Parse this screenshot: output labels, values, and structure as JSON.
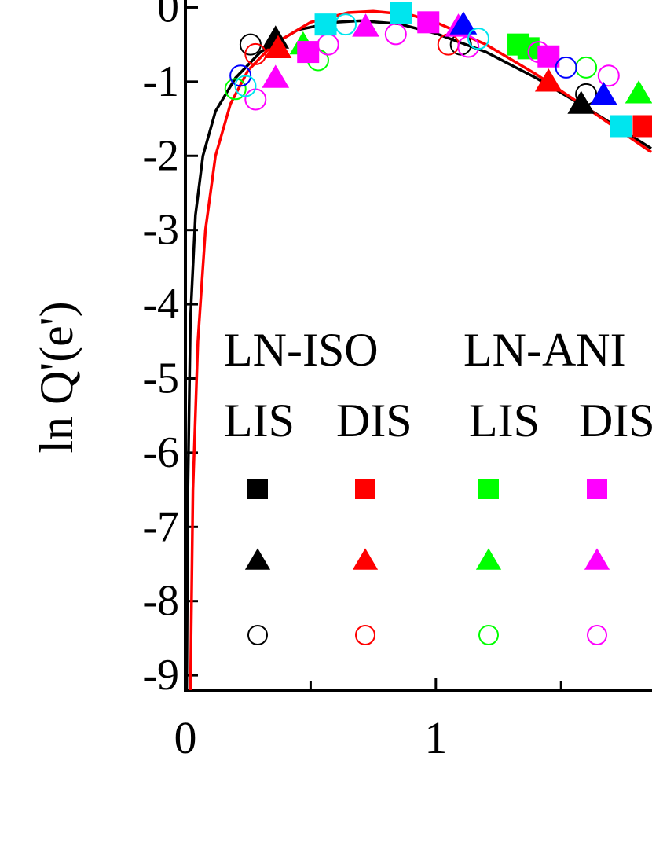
{
  "chart_data": {
    "type": "scatter",
    "ylabel": "ln Q'(e')",
    "xlim": [
      0,
      1.86
    ],
    "ylim": [
      -9.2,
      0.1
    ],
    "xticks": [
      0,
      1
    ],
    "xminorticks": [
      0.5,
      1.5
    ],
    "yticks": [
      0,
      -1,
      -2,
      -3,
      -4,
      -5,
      -6,
      -7,
      -8,
      -9
    ],
    "legend": {
      "groups": [
        {
          "name": "LN-ISO",
          "sub": [
            "LIS",
            "DIS"
          ]
        },
        {
          "name": "LN-ANI",
          "sub": [
            "LIS",
            "DIS"
          ]
        }
      ]
    },
    "lines": [
      {
        "color": "#000000",
        "x": [
          0.005,
          0.01,
          0.02,
          0.04,
          0.07,
          0.12,
          0.2,
          0.3,
          0.45,
          0.6,
          0.7,
          0.85,
          1.0,
          1.2,
          1.4,
          1.6,
          1.86
        ],
        "y": [
          -9.2,
          -6.5,
          -4.2,
          -2.8,
          -2.0,
          -1.4,
          -0.95,
          -0.6,
          -0.3,
          -0.2,
          -0.18,
          -0.22,
          -0.35,
          -0.6,
          -0.95,
          -1.35,
          -1.9
        ]
      },
      {
        "color": "#ff0000",
        "x": [
          0.02,
          0.03,
          0.05,
          0.08,
          0.12,
          0.18,
          0.25,
          0.35,
          0.5,
          0.65,
          0.75,
          0.9,
          1.0,
          1.2,
          1.4,
          1.6,
          1.86
        ],
        "y": [
          -9.2,
          -6.5,
          -4.5,
          -3.0,
          -2.0,
          -1.3,
          -0.85,
          -0.5,
          -0.2,
          -0.07,
          -0.05,
          -0.1,
          -0.2,
          -0.5,
          -0.9,
          -1.35,
          -1.95
        ]
      }
    ],
    "series": [
      {
        "color": "#000000",
        "marker": "square",
        "legend": true,
        "x": [],
        "y": []
      },
      {
        "color": "#000000",
        "marker": "triangle",
        "legend": true,
        "x": [
          0.36,
          1.58
        ],
        "y": [
          -0.42,
          -1.3
        ]
      },
      {
        "color": "#000000",
        "marker": "circle",
        "legend": true,
        "x": [
          0.26,
          1.6,
          1.1
        ],
        "y": [
          -0.5,
          -1.17,
          -0.5
        ]
      },
      {
        "color": "#ff0000",
        "marker": "square",
        "legend": true,
        "x": [
          1.83
        ],
        "y": [
          -1.6
        ]
      },
      {
        "color": "#ff0000",
        "marker": "triangle",
        "legend": true,
        "x": [
          0.37,
          1.45
        ],
        "y": [
          -0.55,
          -1.0
        ]
      },
      {
        "color": "#ff0000",
        "marker": "circle",
        "legend": true,
        "x": [
          0.28,
          1.05
        ],
        "y": [
          -0.63,
          -0.5
        ]
      },
      {
        "color": "#00ff00",
        "marker": "square",
        "legend": true,
        "x": [
          1.33,
          1.37
        ],
        "y": [
          -0.5,
          -0.55
        ]
      },
      {
        "color": "#00ff00",
        "marker": "triangle",
        "legend": true,
        "x": [
          0.47,
          1.81
        ],
        "y": [
          -0.5,
          -1.16
        ]
      },
      {
        "color": "#00ff00",
        "marker": "circle",
        "legend": true,
        "x": [
          0.53,
          1.6,
          0.2
        ],
        "y": [
          -0.71,
          -0.81,
          -1.1
        ]
      },
      {
        "color": "#ff00ff",
        "marker": "square",
        "legend": true,
        "x": [
          0.49,
          0.97,
          1.45
        ],
        "y": [
          -0.6,
          -0.2,
          -0.66
        ]
      },
      {
        "color": "#ff00ff",
        "marker": "triangle",
        "legend": true,
        "x": [
          0.36,
          0.72,
          1.09
        ],
        "y": [
          -0.95,
          -0.26,
          -0.26
        ]
      },
      {
        "color": "#ff00ff",
        "marker": "circle",
        "legend": true,
        "x": [
          0.28,
          0.57,
          0.84,
          1.13,
          1.41,
          1.69
        ],
        "y": [
          -1.24,
          -0.5,
          -0.36,
          -0.53,
          -0.6,
          -0.92
        ]
      },
      {
        "color": "#0000ff",
        "marker": "triangle",
        "legend": false,
        "x": [
          1.11,
          1.67
        ],
        "y": [
          -0.23,
          -1.18
        ]
      },
      {
        "color": "#0000ff",
        "marker": "circle",
        "legend": false,
        "x": [
          0.22,
          1.52
        ],
        "y": [
          -0.92,
          -0.81
        ]
      },
      {
        "color": "#00e5ee",
        "marker": "square",
        "legend": false,
        "x": [
          0.56,
          0.86,
          1.74
        ],
        "y": [
          -0.23,
          -0.07,
          -1.6
        ]
      },
      {
        "color": "#00e5ee",
        "marker": "circle",
        "legend": false,
        "x": [
          0.64,
          1.17,
          0.24
        ],
        "y": [
          -0.23,
          -0.42,
          -1.06
        ]
      }
    ]
  }
}
